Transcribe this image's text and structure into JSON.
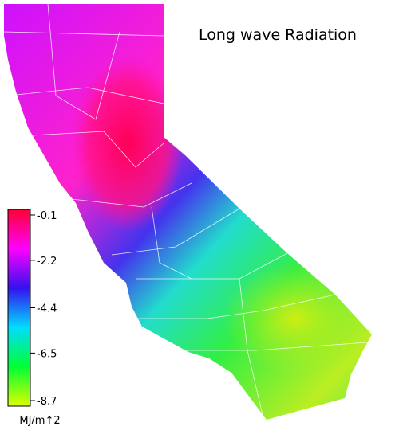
{
  "title": "Long wave Radiation",
  "colorbar": {
    "lim": [
      -8.7,
      -0.1
    ],
    "ticks": [
      -0.1,
      -2.2,
      -4.4,
      -6.5,
      -8.7
    ],
    "colors": [
      "#ff0033",
      "#ff00ff",
      "#3311ee",
      "#00ddff",
      "#00ff33",
      "#ddff00"
    ],
    "unit": "MJ/m↑2"
  }
}
